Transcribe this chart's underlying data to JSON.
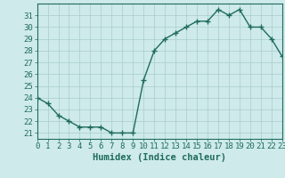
{
  "xlabel": "Humidex (Indice chaleur)",
  "x": [
    0,
    1,
    2,
    3,
    4,
    5,
    6,
    7,
    8,
    9,
    10,
    11,
    12,
    13,
    14,
    15,
    16,
    17,
    18,
    19,
    20,
    21,
    22,
    23
  ],
  "y": [
    24,
    23.5,
    22.5,
    22,
    21.5,
    21.5,
    21.5,
    21,
    21,
    21,
    25.5,
    28,
    29,
    29.5,
    30,
    30.5,
    30.5,
    31.5,
    31,
    31.5,
    30,
    30,
    29,
    27.5
  ],
  "line_color": "#1f6b5e",
  "background_color": "#ceeaea",
  "grid_color": "#aacccc",
  "tick_color": "#1f6b5e",
  "label_color": "#1f6b5e",
  "xlim": [
    0,
    23
  ],
  "ylim": [
    21,
    32
  ],
  "yticks": [
    21,
    22,
    23,
    24,
    25,
    26,
    27,
    28,
    29,
    30,
    31
  ],
  "xticks": [
    0,
    1,
    2,
    3,
    4,
    5,
    6,
    7,
    8,
    9,
    10,
    11,
    12,
    13,
    14,
    15,
    16,
    17,
    18,
    19,
    20,
    21,
    22,
    23
  ],
  "marker_size": 4,
  "line_width": 1.0,
  "xlabel_fontsize": 7.5,
  "tick_fontsize": 6.5
}
